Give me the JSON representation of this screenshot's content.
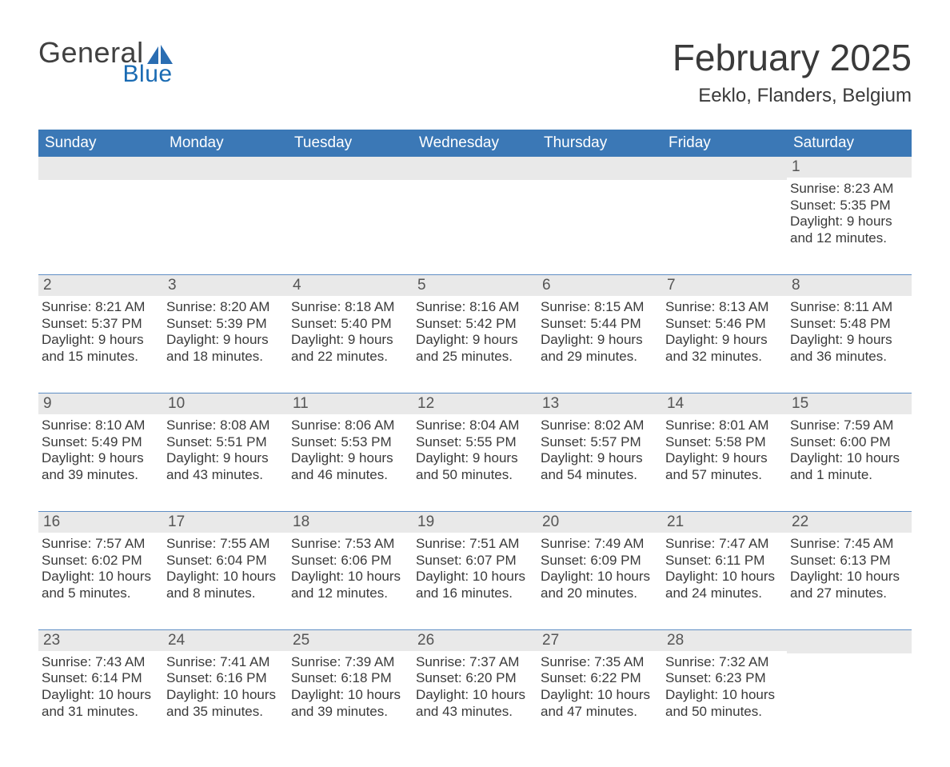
{
  "colors": {
    "header_blue": "#3b78b6",
    "accent_blue": "#2a6db2",
    "logo_dark_text": "#404040",
    "logo_blue_text": "#1a6bb3",
    "title_text": "#3a3a3a",
    "body_text": "#3a3a3a",
    "day_number_text": "#555555",
    "day_header_band": "#e9e9e9",
    "week_rule": "#5f8ec4",
    "page_bg": "#ffffff"
  },
  "typography": {
    "font_family": "Arial, Helvetica, sans-serif",
    "month_title_fontsize": 46,
    "subtitle_fontsize": 24,
    "dow_header_fontsize": 19,
    "day_number_fontsize": 19,
    "day_info_fontsize": 17,
    "logo_general_fontsize": 36,
    "logo_blue_fontsize": 30
  },
  "logo": {
    "word1": "General",
    "word2": "Blue",
    "mark_name": "sail-icon"
  },
  "header": {
    "month_title": "February 2025",
    "location": "Eeklo, Flanders, Belgium"
  },
  "calendar": {
    "day_of_week_labels": [
      "Sunday",
      "Monday",
      "Tuesday",
      "Wednesday",
      "Thursday",
      "Friday",
      "Saturday"
    ],
    "labels": {
      "sunrise": "Sunrise",
      "sunset": "Sunset",
      "daylight": "Daylight"
    },
    "leading_empty": 6,
    "days": [
      {
        "num": 1,
        "sunrise": "8:23 AM",
        "sunset": "5:35 PM",
        "daylight": "9 hours and 12 minutes."
      },
      {
        "num": 2,
        "sunrise": "8:21 AM",
        "sunset": "5:37 PM",
        "daylight": "9 hours and 15 minutes."
      },
      {
        "num": 3,
        "sunrise": "8:20 AM",
        "sunset": "5:39 PM",
        "daylight": "9 hours and 18 minutes."
      },
      {
        "num": 4,
        "sunrise": "8:18 AM",
        "sunset": "5:40 PM",
        "daylight": "9 hours and 22 minutes."
      },
      {
        "num": 5,
        "sunrise": "8:16 AM",
        "sunset": "5:42 PM",
        "daylight": "9 hours and 25 minutes."
      },
      {
        "num": 6,
        "sunrise": "8:15 AM",
        "sunset": "5:44 PM",
        "daylight": "9 hours and 29 minutes."
      },
      {
        "num": 7,
        "sunrise": "8:13 AM",
        "sunset": "5:46 PM",
        "daylight": "9 hours and 32 minutes."
      },
      {
        "num": 8,
        "sunrise": "8:11 AM",
        "sunset": "5:48 PM",
        "daylight": "9 hours and 36 minutes."
      },
      {
        "num": 9,
        "sunrise": "8:10 AM",
        "sunset": "5:49 PM",
        "daylight": "9 hours and 39 minutes."
      },
      {
        "num": 10,
        "sunrise": "8:08 AM",
        "sunset": "5:51 PM",
        "daylight": "9 hours and 43 minutes."
      },
      {
        "num": 11,
        "sunrise": "8:06 AM",
        "sunset": "5:53 PM",
        "daylight": "9 hours and 46 minutes."
      },
      {
        "num": 12,
        "sunrise": "8:04 AM",
        "sunset": "5:55 PM",
        "daylight": "9 hours and 50 minutes."
      },
      {
        "num": 13,
        "sunrise": "8:02 AM",
        "sunset": "5:57 PM",
        "daylight": "9 hours and 54 minutes."
      },
      {
        "num": 14,
        "sunrise": "8:01 AM",
        "sunset": "5:58 PM",
        "daylight": "9 hours and 57 minutes."
      },
      {
        "num": 15,
        "sunrise": "7:59 AM",
        "sunset": "6:00 PM",
        "daylight": "10 hours and 1 minute."
      },
      {
        "num": 16,
        "sunrise": "7:57 AM",
        "sunset": "6:02 PM",
        "daylight": "10 hours and 5 minutes."
      },
      {
        "num": 17,
        "sunrise": "7:55 AM",
        "sunset": "6:04 PM",
        "daylight": "10 hours and 8 minutes."
      },
      {
        "num": 18,
        "sunrise": "7:53 AM",
        "sunset": "6:06 PM",
        "daylight": "10 hours and 12 minutes."
      },
      {
        "num": 19,
        "sunrise": "7:51 AM",
        "sunset": "6:07 PM",
        "daylight": "10 hours and 16 minutes."
      },
      {
        "num": 20,
        "sunrise": "7:49 AM",
        "sunset": "6:09 PM",
        "daylight": "10 hours and 20 minutes."
      },
      {
        "num": 21,
        "sunrise": "7:47 AM",
        "sunset": "6:11 PM",
        "daylight": "10 hours and 24 minutes."
      },
      {
        "num": 22,
        "sunrise": "7:45 AM",
        "sunset": "6:13 PM",
        "daylight": "10 hours and 27 minutes."
      },
      {
        "num": 23,
        "sunrise": "7:43 AM",
        "sunset": "6:14 PM",
        "daylight": "10 hours and 31 minutes."
      },
      {
        "num": 24,
        "sunrise": "7:41 AM",
        "sunset": "6:16 PM",
        "daylight": "10 hours and 35 minutes."
      },
      {
        "num": 25,
        "sunrise": "7:39 AM",
        "sunset": "6:18 PM",
        "daylight": "10 hours and 39 minutes."
      },
      {
        "num": 26,
        "sunrise": "7:37 AM",
        "sunset": "6:20 PM",
        "daylight": "10 hours and 43 minutes."
      },
      {
        "num": 27,
        "sunrise": "7:35 AM",
        "sunset": "6:22 PM",
        "daylight": "10 hours and 47 minutes."
      },
      {
        "num": 28,
        "sunrise": "7:32 AM",
        "sunset": "6:23 PM",
        "daylight": "10 hours and 50 minutes."
      }
    ]
  }
}
